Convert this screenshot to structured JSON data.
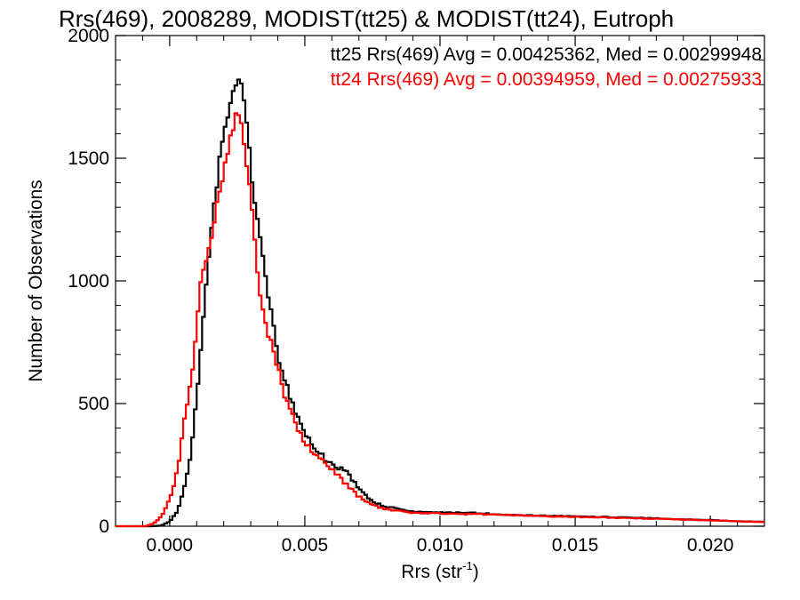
{
  "chart_data": {
    "type": "line",
    "title": "Rrs(469), 2008289, MODIST(tt25) & MODIST(tt24), Eutroph",
    "xlabel_main": "Rrs (str",
    "xlabel_sup": "-1",
    "xlabel_close": ")",
    "ylabel": "Number of Observations",
    "xlim": [
      -0.002,
      0.022
    ],
    "ylim": [
      0,
      2000
    ],
    "x_ticks": [
      0.0,
      0.005,
      0.01,
      0.015,
      0.02
    ],
    "x_tick_labels": [
      "0.000",
      "0.005",
      "0.010",
      "0.015",
      "0.020"
    ],
    "y_ticks": [
      0,
      500,
      1000,
      1500,
      2000
    ],
    "y_tick_labels": [
      "0",
      "500",
      "1000",
      "1500",
      "2000"
    ],
    "grid": false,
    "legend_position": "top-right",
    "series": [
      {
        "name": "tt25",
        "color": "#000000",
        "legend_text": "tt25 Rrs(469) Avg = 0.00425362, Med = 0.00299948",
        "x": [
          -0.002,
          -0.0006,
          -0.0003,
          0.0,
          0.0003,
          0.0005,
          0.0008,
          0.001,
          0.0012,
          0.0014,
          0.0016,
          0.0018,
          0.002,
          0.0022,
          0.0024,
          0.0025,
          0.0026,
          0.0027,
          0.0028,
          0.0029,
          0.003,
          0.0031,
          0.0033,
          0.0035,
          0.0037,
          0.004,
          0.0043,
          0.0046,
          0.005,
          0.0055,
          0.006,
          0.0065,
          0.007,
          0.0075,
          0.008,
          0.009,
          0.01,
          0.011,
          0.012,
          0.013,
          0.014,
          0.015,
          0.016,
          0.017,
          0.018,
          0.019,
          0.02,
          0.021,
          0.022
        ],
        "y": [
          0,
          0,
          3,
          20,
          60,
          140,
          300,
          520,
          800,
          1050,
          1250,
          1450,
          1600,
          1700,
          1780,
          1800,
          1820,
          1780,
          1700,
          1600,
          1470,
          1360,
          1200,
          1050,
          900,
          700,
          580,
          480,
          370,
          300,
          250,
          230,
          150,
          100,
          80,
          60,
          55,
          55,
          50,
          45,
          42,
          40,
          38,
          35,
          32,
          28,
          25,
          20,
          18
        ]
      },
      {
        "name": "tt24",
        "color": "#ff0000",
        "legend_text": "tt24 Rrs(469) Avg = 0.00394959, Med = 0.00275933",
        "x": [
          -0.002,
          -0.0009,
          -0.0006,
          -0.0003,
          0.0,
          0.0003,
          0.0005,
          0.0008,
          0.001,
          0.0012,
          0.0014,
          0.0016,
          0.0018,
          0.002,
          0.0022,
          0.0023,
          0.0024,
          0.0025,
          0.0026,
          0.0027,
          0.0028,
          0.003,
          0.0032,
          0.0034,
          0.0036,
          0.004,
          0.0043,
          0.0046,
          0.005,
          0.0055,
          0.006,
          0.0065,
          0.007,
          0.0075,
          0.008,
          0.009,
          0.01,
          0.011,
          0.012,
          0.013,
          0.014,
          0.015,
          0.016,
          0.017,
          0.018,
          0.019,
          0.02,
          0.021,
          0.022
        ],
        "y": [
          0,
          0,
          10,
          40,
          110,
          230,
          390,
          600,
          820,
          1030,
          1120,
          1200,
          1350,
          1450,
          1560,
          1600,
          1650,
          1680,
          1690,
          1620,
          1500,
          1350,
          1100,
          900,
          800,
          650,
          520,
          440,
          340,
          280,
          230,
          175,
          120,
          85,
          70,
          55,
          52,
          50,
          48,
          44,
          40,
          38,
          36,
          33,
          30,
          27,
          24,
          20,
          17
        ]
      }
    ]
  }
}
